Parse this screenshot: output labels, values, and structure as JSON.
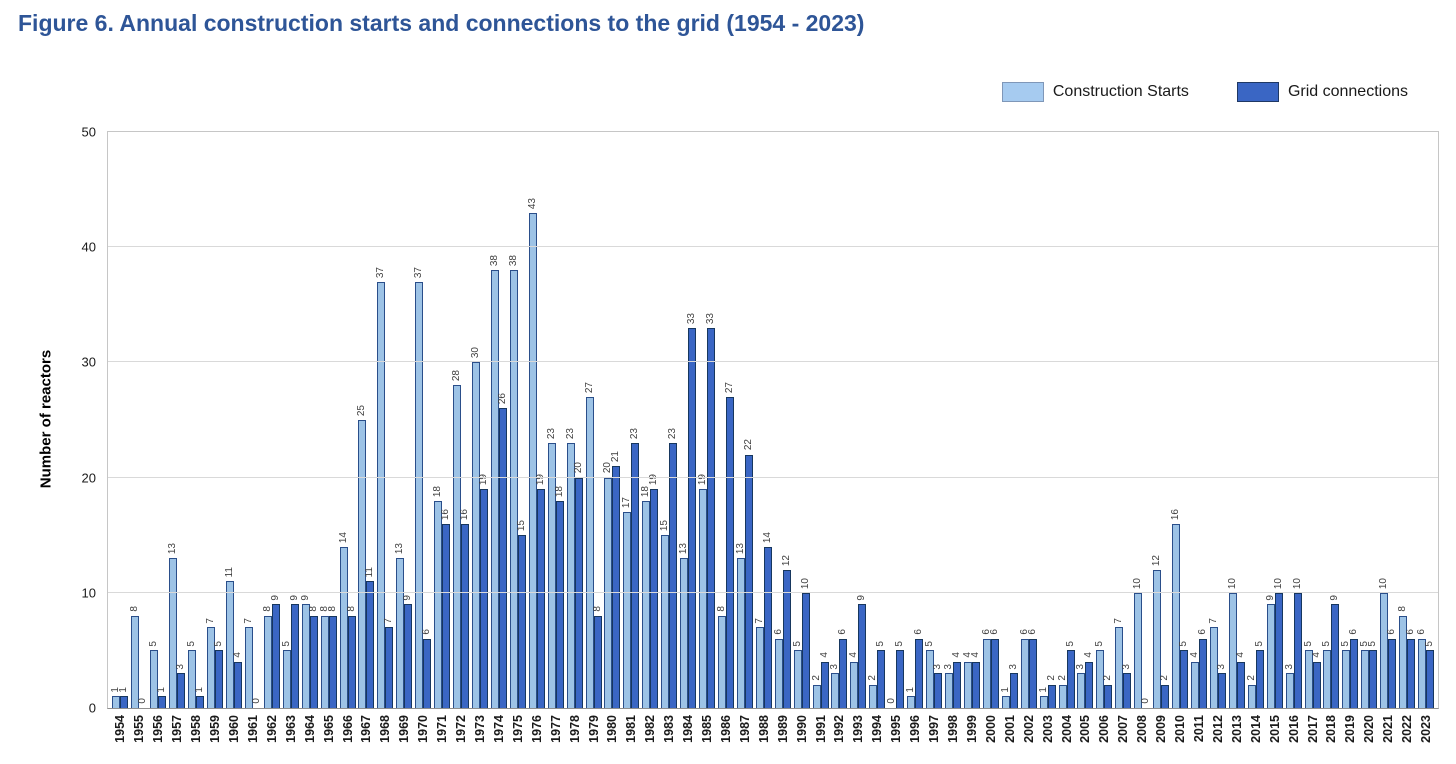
{
  "header": {
    "title": "Figure 6. Annual construction starts and connections to the grid (1954 - 2023)"
  },
  "chart_data": {
    "type": "bar",
    "title": "Figure 6. Annual construction starts and connections to the grid (1954 - 2023)",
    "ylabel": "Number of reactors",
    "ylim": [
      0,
      50
    ],
    "yticks": [
      0,
      10,
      20,
      30,
      40,
      50
    ],
    "grid": true,
    "bar_value_labels": true,
    "legend_position": "top-right",
    "categories": [
      "1954",
      "1955",
      "1956",
      "1957",
      "1958",
      "1959",
      "1960",
      "1961",
      "1962",
      "1963",
      "1964",
      "1965",
      "1966",
      "1967",
      "1968",
      "1969",
      "1970",
      "1971",
      "1972",
      "1973",
      "1974",
      "1975",
      "1976",
      "1977",
      "1978",
      "1979",
      "1980",
      "1981",
      "1982",
      "1983",
      "1984",
      "1985",
      "1986",
      "1987",
      "1988",
      "1989",
      "1990",
      "1991",
      "1992",
      "1993",
      "1994",
      "1995",
      "1996",
      "1997",
      "1998",
      "1999",
      "2000",
      "2001",
      "2002",
      "2003",
      "2004",
      "2005",
      "2006",
      "2007",
      "2008",
      "2009",
      "2010",
      "2011",
      "2012",
      "2013",
      "2014",
      "2015",
      "2016",
      "2017",
      "2018",
      "2019",
      "2020",
      "2021",
      "2022",
      "2023"
    ],
    "series": [
      {
        "name": "Construction Starts",
        "color": "#9dc3e6",
        "border_color": "#2a4e8a",
        "values": [
          1,
          8,
          5,
          13,
          5,
          7,
          11,
          7,
          8,
          5,
          9,
          8,
          14,
          25,
          37,
          13,
          37,
          18,
          28,
          30,
          38,
          38,
          43,
          23,
          23,
          27,
          20,
          17,
          18,
          15,
          13,
          19,
          8,
          13,
          7,
          6,
          5,
          2,
          3,
          4,
          2,
          0,
          1,
          5,
          3,
          4,
          6,
          1,
          6,
          1,
          2,
          3,
          5,
          7,
          10,
          12,
          16,
          4,
          7,
          10,
          2,
          9,
          3,
          5,
          5,
          5,
          5,
          10,
          8,
          6
        ]
      },
      {
        "name": "Grid connections",
        "color": "#3a66c4",
        "border_color": "#17375e",
        "values": [
          1,
          0,
          1,
          3,
          1,
          5,
          4,
          0,
          9,
          9,
          8,
          8,
          8,
          11,
          7,
          9,
          6,
          16,
          16,
          19,
          26,
          15,
          19,
          18,
          20,
          8,
          21,
          23,
          19,
          23,
          33,
          33,
          27,
          22,
          14,
          12,
          10,
          4,
          6,
          9,
          5,
          5,
          6,
          3,
          4,
          4,
          6,
          3,
          6,
          2,
          5,
          4,
          2,
          3,
          0,
          2,
          5,
          6,
          3,
          4,
          5,
          10,
          10,
          4,
          9,
          6,
          5,
          6,
          6,
          5
        ]
      }
    ]
  }
}
